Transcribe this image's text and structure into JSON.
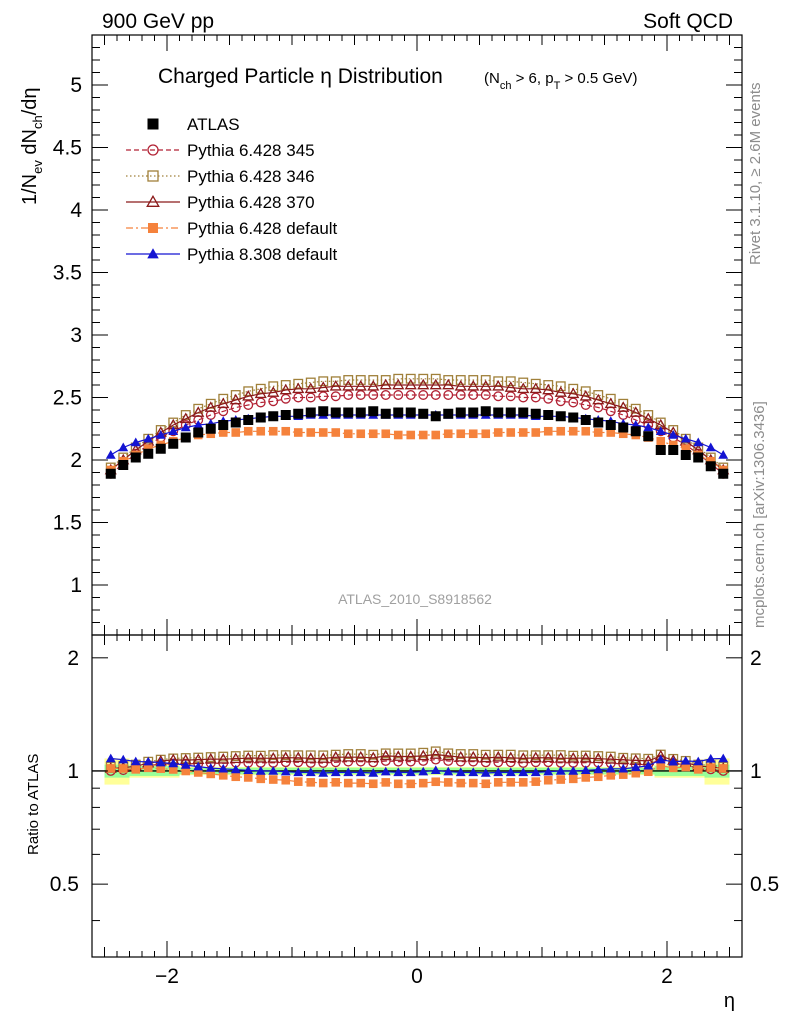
{
  "header": {
    "left": "900 GeV pp",
    "right": "Soft QCD"
  },
  "side": {
    "rivet": "Rivet 3.1.10, ≥ 2.6M events",
    "mcplots": "mcplots.cern.ch [arXiv:1306.3436]"
  },
  "chart_data": {
    "type": "scatter",
    "title": "Charged Particle η Distribution",
    "subtitle": "(N_ch > 6, p_T > 0.5 GeV)",
    "analysis_label": "ATLAS_2010_S8918562",
    "xlabel": "η",
    "ylabel": "1/N_ev dN_ch/dη",
    "ratio_ylabel": "Ratio to ATLAS",
    "xlim": [
      -2.6,
      2.6
    ],
    "ylim": [
      0.6,
      5.4
    ],
    "ratio_ylim": [
      0.32,
      2.3
    ],
    "xticks": [
      "−2",
      "0",
      "2"
    ],
    "yticks": [
      "1",
      "1.5",
      "2",
      "2.5",
      "3",
      "3.5",
      "4",
      "4.5",
      "5"
    ],
    "ratio_yticks": [
      "0.5",
      "1",
      "2"
    ],
    "legend_position": "top-left",
    "eta": [
      -2.45,
      -2.35,
      -2.25,
      -2.15,
      -2.05,
      -1.95,
      -1.85,
      -1.75,
      -1.65,
      -1.55,
      -1.45,
      -1.35,
      -1.25,
      -1.15,
      -1.05,
      -0.95,
      -0.85,
      -0.75,
      -0.65,
      -0.55,
      -0.45,
      -0.35,
      -0.25,
      -0.15,
      -0.05,
      0.05,
      0.15,
      0.25,
      0.35,
      0.45,
      0.55,
      0.65,
      0.75,
      0.85,
      0.95,
      1.05,
      1.15,
      1.25,
      1.35,
      1.45,
      1.55,
      1.65,
      1.75,
      1.85,
      1.95,
      2.05,
      2.15,
      2.25,
      2.35,
      2.45
    ],
    "series": [
      {
        "name": "ATLAS",
        "color": "#000000",
        "marker": "square-filled",
        "values": [
          1.89,
          1.96,
          2.02,
          2.05,
          2.09,
          2.13,
          2.18,
          2.22,
          2.25,
          2.28,
          2.3,
          2.32,
          2.34,
          2.35,
          2.36,
          2.37,
          2.38,
          2.39,
          2.38,
          2.38,
          2.38,
          2.39,
          2.37,
          2.38,
          2.38,
          2.37,
          2.35,
          2.37,
          2.38,
          2.38,
          2.39,
          2.38,
          2.38,
          2.38,
          2.37,
          2.36,
          2.35,
          2.34,
          2.32,
          2.3,
          2.28,
          2.26,
          2.23,
          2.19,
          2.08,
          2.08,
          2.04,
          2.02,
          1.95,
          1.89
        ],
        "ratio_band_green": [
          [
            -2.5,
            -2.3,
            0.04
          ],
          [
            -2.3,
            -1.9,
            0.03
          ],
          [
            -1.9,
            1.9,
            0.02
          ],
          [
            1.9,
            2.3,
            0.03
          ],
          [
            2.3,
            2.5,
            0.04
          ]
        ],
        "ratio_band_yellow": [
          [
            -2.5,
            -2.3,
            0.08
          ],
          [
            -2.3,
            -1.9,
            0.04
          ],
          [
            -1.9,
            1.9,
            0.025
          ],
          [
            1.9,
            2.3,
            0.04
          ],
          [
            2.3,
            2.5,
            0.08
          ]
        ]
      },
      {
        "name": "Pythia 6.428 345",
        "color": "#b22234",
        "marker": "circle-open",
        "line": "dashed",
        "values": [
          1.89,
          1.97,
          2.05,
          2.12,
          2.18,
          2.23,
          2.28,
          2.32,
          2.36,
          2.39,
          2.42,
          2.44,
          2.46,
          2.47,
          2.49,
          2.5,
          2.5,
          2.51,
          2.51,
          2.52,
          2.52,
          2.52,
          2.52,
          2.52,
          2.52,
          2.52,
          2.52,
          2.52,
          2.52,
          2.52,
          2.52,
          2.51,
          2.51,
          2.5,
          2.5,
          2.49,
          2.47,
          2.46,
          2.44,
          2.42,
          2.39,
          2.36,
          2.32,
          2.28,
          2.23,
          2.18,
          2.12,
          2.05,
          1.97,
          1.89
        ]
      },
      {
        "name": "Pythia 6.428 346",
        "color": "#a0803a",
        "marker": "square-open",
        "line": "dotted",
        "values": [
          1.94,
          2.02,
          2.1,
          2.17,
          2.24,
          2.3,
          2.36,
          2.41,
          2.45,
          2.49,
          2.52,
          2.55,
          2.57,
          2.59,
          2.6,
          2.61,
          2.62,
          2.63,
          2.63,
          2.64,
          2.64,
          2.64,
          2.64,
          2.65,
          2.65,
          2.65,
          2.65,
          2.64,
          2.64,
          2.64,
          2.64,
          2.63,
          2.63,
          2.62,
          2.61,
          2.6,
          2.59,
          2.57,
          2.55,
          2.52,
          2.49,
          2.45,
          2.41,
          2.36,
          2.3,
          2.24,
          2.17,
          2.1,
          2.02,
          1.94
        ]
      },
      {
        "name": "Pythia 6.428 370",
        "color": "#8b1a1a",
        "marker": "triangle-open",
        "line": "solid",
        "values": [
          1.92,
          2.0,
          2.08,
          2.15,
          2.22,
          2.28,
          2.33,
          2.38,
          2.42,
          2.45,
          2.48,
          2.51,
          2.53,
          2.54,
          2.56,
          2.57,
          2.57,
          2.58,
          2.59,
          2.59,
          2.59,
          2.59,
          2.6,
          2.6,
          2.6,
          2.6,
          2.6,
          2.6,
          2.59,
          2.59,
          2.59,
          2.59,
          2.58,
          2.57,
          2.57,
          2.56,
          2.54,
          2.53,
          2.51,
          2.48,
          2.45,
          2.42,
          2.38,
          2.33,
          2.28,
          2.22,
          2.15,
          2.08,
          2.0,
          1.92
        ]
      },
      {
        "name": "Pythia 6.428 default",
        "color": "#f5823c",
        "marker": "square-filled",
        "line": "dashdot",
        "values": [
          1.92,
          1.99,
          2.04,
          2.09,
          2.12,
          2.15,
          2.18,
          2.2,
          2.21,
          2.22,
          2.22,
          2.23,
          2.23,
          2.23,
          2.23,
          2.22,
          2.22,
          2.22,
          2.22,
          2.21,
          2.21,
          2.21,
          2.21,
          2.2,
          2.2,
          2.2,
          2.2,
          2.21,
          2.21,
          2.21,
          2.21,
          2.22,
          2.22,
          2.22,
          2.22,
          2.23,
          2.23,
          2.23,
          2.23,
          2.22,
          2.22,
          2.21,
          2.2,
          2.18,
          2.15,
          2.12,
          2.09,
          2.04,
          1.99,
          1.92
        ]
      },
      {
        "name": "Pythia 8.308 default",
        "color": "#1414d2",
        "marker": "triangle-filled",
        "line": "solid",
        "values": [
          2.04,
          2.1,
          2.14,
          2.17,
          2.2,
          2.23,
          2.26,
          2.28,
          2.29,
          2.31,
          2.32,
          2.33,
          2.34,
          2.35,
          2.35,
          2.35,
          2.36,
          2.36,
          2.36,
          2.36,
          2.36,
          2.36,
          2.36,
          2.36,
          2.36,
          2.36,
          2.36,
          2.36,
          2.36,
          2.36,
          2.36,
          2.36,
          2.36,
          2.36,
          2.35,
          2.35,
          2.35,
          2.34,
          2.33,
          2.32,
          2.31,
          2.29,
          2.28,
          2.26,
          2.23,
          2.2,
          2.17,
          2.14,
          2.1,
          2.04
        ]
      }
    ]
  }
}
